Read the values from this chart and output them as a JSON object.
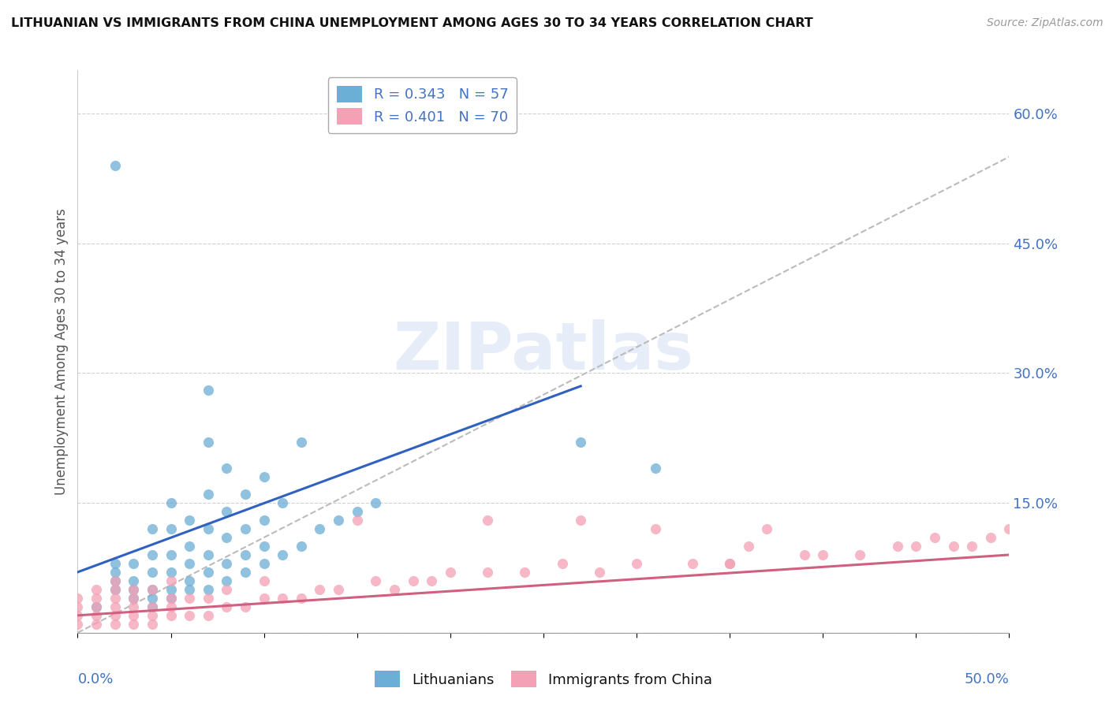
{
  "title": "LITHUANIAN VS IMMIGRANTS FROM CHINA UNEMPLOYMENT AMONG AGES 30 TO 34 YEARS CORRELATION CHART",
  "source": "Source: ZipAtlas.com",
  "ylabel": "Unemployment Among Ages 30 to 34 years",
  "yticks": [
    0.0,
    0.15,
    0.3,
    0.45,
    0.6
  ],
  "ytick_labels": [
    "",
    "15.0%",
    "30.0%",
    "45.0%",
    "60.0%"
  ],
  "xrange": [
    0.0,
    0.5
  ],
  "yrange": [
    0.0,
    0.65
  ],
  "legend_entries": [
    {
      "label": "R = 0.343   N = 57",
      "color": "#6baed6"
    },
    {
      "label": "R = 0.401   N = 70",
      "color": "#f4a0b5"
    }
  ],
  "legend_labels_bottom": [
    "Lithuanians",
    "Immigrants from China"
  ],
  "watermark": "ZIPatlas",
  "blue_color": "#6baed6",
  "pink_color": "#f4a0b5",
  "trendline_color_blue": "#3060c0",
  "trendline_color_pink": "#d06080",
  "trendline_dashed_color": "#bbbbbb",
  "scatter_blue_x": [
    0.01,
    0.02,
    0.02,
    0.02,
    0.02,
    0.02,
    0.03,
    0.03,
    0.03,
    0.03,
    0.04,
    0.04,
    0.04,
    0.04,
    0.04,
    0.04,
    0.05,
    0.05,
    0.05,
    0.05,
    0.05,
    0.05,
    0.06,
    0.06,
    0.06,
    0.06,
    0.06,
    0.07,
    0.07,
    0.07,
    0.07,
    0.07,
    0.07,
    0.07,
    0.08,
    0.08,
    0.08,
    0.08,
    0.08,
    0.09,
    0.09,
    0.09,
    0.09,
    0.1,
    0.1,
    0.1,
    0.1,
    0.11,
    0.11,
    0.12,
    0.12,
    0.13,
    0.14,
    0.15,
    0.16,
    0.27,
    0.31
  ],
  "scatter_blue_y": [
    0.03,
    0.54,
    0.05,
    0.06,
    0.07,
    0.08,
    0.04,
    0.05,
    0.06,
    0.08,
    0.03,
    0.04,
    0.05,
    0.07,
    0.09,
    0.12,
    0.04,
    0.05,
    0.07,
    0.09,
    0.12,
    0.15,
    0.05,
    0.06,
    0.08,
    0.1,
    0.13,
    0.05,
    0.07,
    0.09,
    0.12,
    0.16,
    0.22,
    0.28,
    0.06,
    0.08,
    0.11,
    0.14,
    0.19,
    0.07,
    0.09,
    0.12,
    0.16,
    0.08,
    0.1,
    0.13,
    0.18,
    0.09,
    0.15,
    0.1,
    0.22,
    0.12,
    0.13,
    0.14,
    0.15,
    0.22,
    0.19
  ],
  "scatter_pink_x": [
    0.0,
    0.0,
    0.0,
    0.0,
    0.01,
    0.01,
    0.01,
    0.01,
    0.01,
    0.02,
    0.02,
    0.02,
    0.02,
    0.02,
    0.02,
    0.03,
    0.03,
    0.03,
    0.03,
    0.03,
    0.04,
    0.04,
    0.04,
    0.04,
    0.05,
    0.05,
    0.05,
    0.05,
    0.06,
    0.06,
    0.07,
    0.07,
    0.08,
    0.08,
    0.09,
    0.1,
    0.1,
    0.11,
    0.12,
    0.13,
    0.14,
    0.15,
    0.16,
    0.17,
    0.18,
    0.19,
    0.2,
    0.22,
    0.24,
    0.26,
    0.27,
    0.28,
    0.3,
    0.31,
    0.33,
    0.35,
    0.36,
    0.37,
    0.39,
    0.4,
    0.42,
    0.44,
    0.45,
    0.46,
    0.47,
    0.48,
    0.49,
    0.5,
    0.22,
    0.35
  ],
  "scatter_pink_y": [
    0.01,
    0.02,
    0.03,
    0.04,
    0.01,
    0.02,
    0.03,
    0.04,
    0.05,
    0.01,
    0.02,
    0.03,
    0.04,
    0.05,
    0.06,
    0.01,
    0.02,
    0.03,
    0.04,
    0.05,
    0.01,
    0.02,
    0.03,
    0.05,
    0.02,
    0.03,
    0.04,
    0.06,
    0.02,
    0.04,
    0.02,
    0.04,
    0.03,
    0.05,
    0.03,
    0.04,
    0.06,
    0.04,
    0.04,
    0.05,
    0.05,
    0.13,
    0.06,
    0.05,
    0.06,
    0.06,
    0.07,
    0.07,
    0.07,
    0.08,
    0.13,
    0.07,
    0.08,
    0.12,
    0.08,
    0.08,
    0.1,
    0.12,
    0.09,
    0.09,
    0.09,
    0.1,
    0.1,
    0.11,
    0.1,
    0.1,
    0.11,
    0.12,
    0.13,
    0.08
  ],
  "blue_trend_x": [
    0.0,
    0.27
  ],
  "blue_trend_y": [
    0.07,
    0.285
  ],
  "pink_trend_x": [
    0.0,
    0.5
  ],
  "pink_trend_y": [
    0.02,
    0.09
  ],
  "dashed_trend_x": [
    0.0,
    0.5
  ],
  "dashed_trend_y": [
    0.0,
    0.55
  ]
}
